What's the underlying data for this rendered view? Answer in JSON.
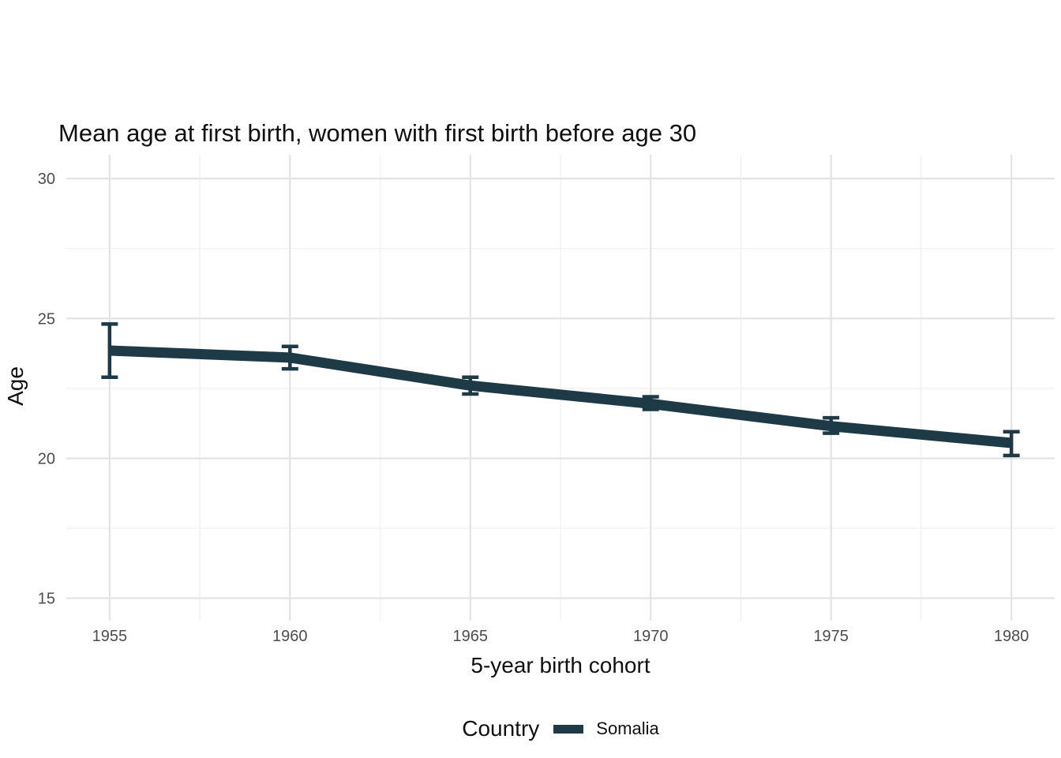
{
  "chart_data": {
    "type": "line",
    "title": "Mean age at first birth, women with first birth before age 30",
    "xlabel": "5-year birth cohort",
    "ylabel": "Age",
    "x": [
      1955,
      1960,
      1965,
      1970,
      1975,
      1980
    ],
    "series": [
      {
        "name": "Somalia",
        "color": "#1d3a46",
        "values": [
          23.85,
          23.6,
          22.6,
          21.95,
          21.15,
          20.55
        ],
        "ci_low": [
          22.9,
          23.2,
          22.3,
          21.75,
          20.9,
          20.1
        ],
        "ci_high": [
          24.8,
          24.0,
          22.9,
          22.2,
          21.45,
          20.95
        ]
      }
    ],
    "xlim": [
      1953.8,
      1981.2
    ],
    "ylim": [
      14.2,
      30.85
    ],
    "xticks": [
      1955,
      1960,
      1965,
      1970,
      1975,
      1980
    ],
    "xticks_minor": [
      1957.5,
      1962.5,
      1967.5,
      1972.5,
      1977.5
    ],
    "yticks": [
      15,
      20,
      25,
      30
    ],
    "yticks_minor": [
      17.5,
      22.5,
      27.5
    ],
    "grid": {
      "major_color": "#e3e3e3",
      "minor_color": "#efefef",
      "background": "#ffffff",
      "legend_position": "bottom",
      "grid_on": true
    },
    "legend": {
      "title": "Country",
      "entries": [
        {
          "label": "Somalia",
          "color": "#1d3a46"
        }
      ]
    }
  }
}
